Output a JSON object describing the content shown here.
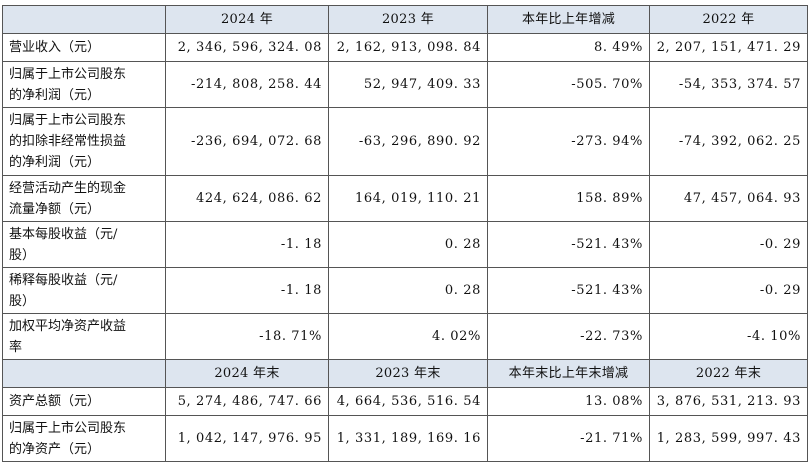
{
  "header1": [
    "",
    "2024 年",
    "2023 年",
    "本年比上年增减",
    "2022 年"
  ],
  "rows1": [
    {
      "label": [
        "营业收入（元）"
      ],
      "values": [
        "2, 346, 596, 324. 08",
        "2, 162, 913, 098. 84",
        "8. 49%",
        "2, 207, 151, 471. 29"
      ]
    },
    {
      "label": [
        "归属于上市公司股东",
        "的净利润（元）"
      ],
      "values": [
        "-214, 808, 258. 44",
        "52, 947, 409. 33",
        "-505. 70%",
        "-54, 353, 374. 57"
      ]
    },
    {
      "label": [
        "归属于上市公司股东",
        "的扣除非经常性损益",
        "的净利润（元）"
      ],
      "values": [
        "-236, 694, 072. 68",
        "-63, 296, 890. 92",
        "-273. 94%",
        "-74, 392, 062. 25"
      ]
    },
    {
      "label": [
        "经营活动产生的现金",
        "流量净额（元）"
      ],
      "values": [
        "424, 624, 086. 62",
        "164, 019, 110. 21",
        "158. 89%",
        "47, 457, 064. 93"
      ]
    },
    {
      "label": [
        "基本每股收益（元/",
        "股）"
      ],
      "values": [
        "-1. 18",
        "0. 28",
        "-521. 43%",
        "-0. 29"
      ]
    },
    {
      "label": [
        "稀释每股收益（元/",
        "股）"
      ],
      "values": [
        "-1. 18",
        "0. 28",
        "-521. 43%",
        "-0. 29"
      ]
    },
    {
      "label": [
        "加权平均净资产收益",
        "率"
      ],
      "values": [
        "-18. 71%",
        "4. 02%",
        "-22. 73%",
        "-4. 10%"
      ]
    }
  ],
  "header2": [
    "",
    "2024 年末",
    "2023 年末",
    "本年末比上年末增减",
    "2022 年末"
  ],
  "rows2": [
    {
      "label": [
        "资产总额（元）"
      ],
      "values": [
        "5, 274, 486, 747. 66",
        "4, 664, 536, 516. 54",
        "13. 08%",
        "3, 876, 531, 213. 93"
      ]
    },
    {
      "label": [
        "归属于上市公司股东",
        "的净资产（元）"
      ],
      "values": [
        "1, 042, 147, 976. 95",
        "1, 331, 189, 169. 16",
        "-21. 71%",
        "1, 283, 599, 997. 43"
      ]
    }
  ]
}
